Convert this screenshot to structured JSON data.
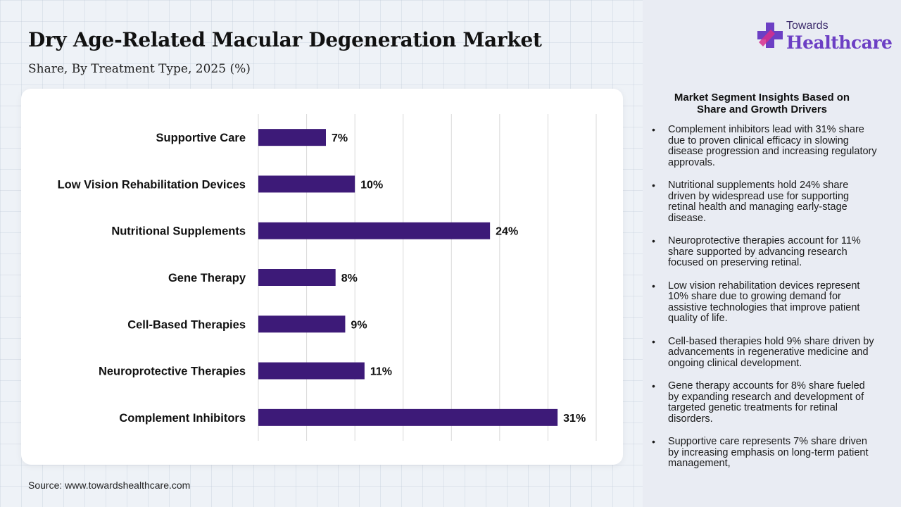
{
  "header": {
    "title": "Dry Age-Related Macular Degeneration Market",
    "subtitle": "Share, By Treatment Type, 2025 (%)"
  },
  "chart_data": {
    "type": "bar",
    "orientation": "horizontal",
    "categories": [
      "Supportive Care",
      "Low Vision Rehabilitation Devices",
      "Nutritional Supplements",
      "Gene Therapy",
      "Cell-Based Therapies",
      "Neuroprotective Therapies",
      "Complement Inhibitors"
    ],
    "values": [
      7,
      10,
      24,
      8,
      9,
      11,
      31
    ],
    "value_labels": [
      "7%",
      "10%",
      "24%",
      "8%",
      "9%",
      "11%",
      "31%"
    ],
    "title": "Dry Age-Related Macular Degeneration Market",
    "subtitle": "Share, By Treatment Type, 2025 (%)",
    "xlim": [
      0,
      35
    ],
    "grid": true,
    "bar_color": "#3d1a78"
  },
  "source": "Source: www.towardshealthcare.com",
  "logo": {
    "top": "Towards",
    "bottom": "Healthcare"
  },
  "insights": {
    "title": "Market Segment Insights Based on Share and Growth Drivers",
    "items": [
      "Complement inhibitors lead with 31% share due to proven clinical efficacy in slowing disease progression and increasing regulatory approvals.",
      "Nutritional supplements hold 24% share driven by widespread use for supporting retinal health and managing early-stage disease.",
      "Neuroprotective therapies account for 11% share supported by advancing research focused on preserving retinal.",
      "Low vision rehabilitation devices represent 10% share due to growing demand for assistive technologies that improve patient quality of life.",
      "Cell-based therapies hold 9% share driven by advancements in regenerative medicine and ongoing clinical development.",
      "Gene therapy accounts for 8% share fueled by expanding research and development of targeted genetic treatments for retinal disorders.",
      "Supportive care represents 7% share driven by increasing emphasis on long-term patient management,"
    ]
  },
  "colors": {
    "bar": "#3d1a78",
    "brand_purple": "#6c3fc4",
    "brand_pink": "#d62e8c"
  }
}
